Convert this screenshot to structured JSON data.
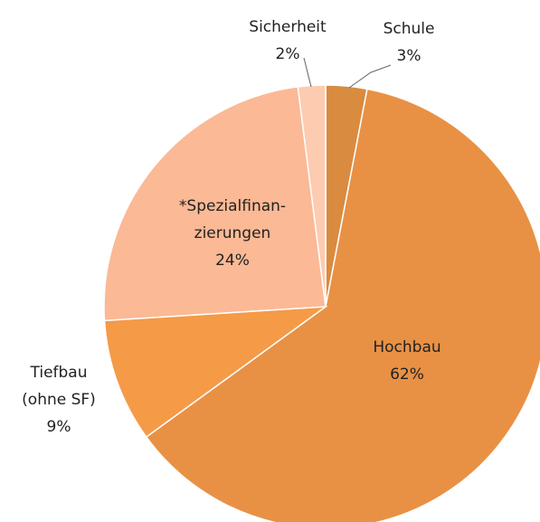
{
  "chart_data": {
    "type": "pie",
    "categories": [
      [
        "Schule"
      ],
      [
        "Hochbau"
      ],
      [
        "Tiefbau",
        "(ohne SF)"
      ],
      [
        "*Spezialfinan-",
        "zierungen"
      ],
      [
        "Sicherheit"
      ]
    ],
    "values": [
      3,
      62,
      9,
      24,
      2
    ],
    "value_labels": [
      "3%",
      "62%",
      "9%",
      "24%",
      "2%"
    ],
    "colors": [
      "#d98b3f",
      "#e89145",
      "#f59a47",
      "#fbb995",
      "#fccbb0"
    ]
  }
}
